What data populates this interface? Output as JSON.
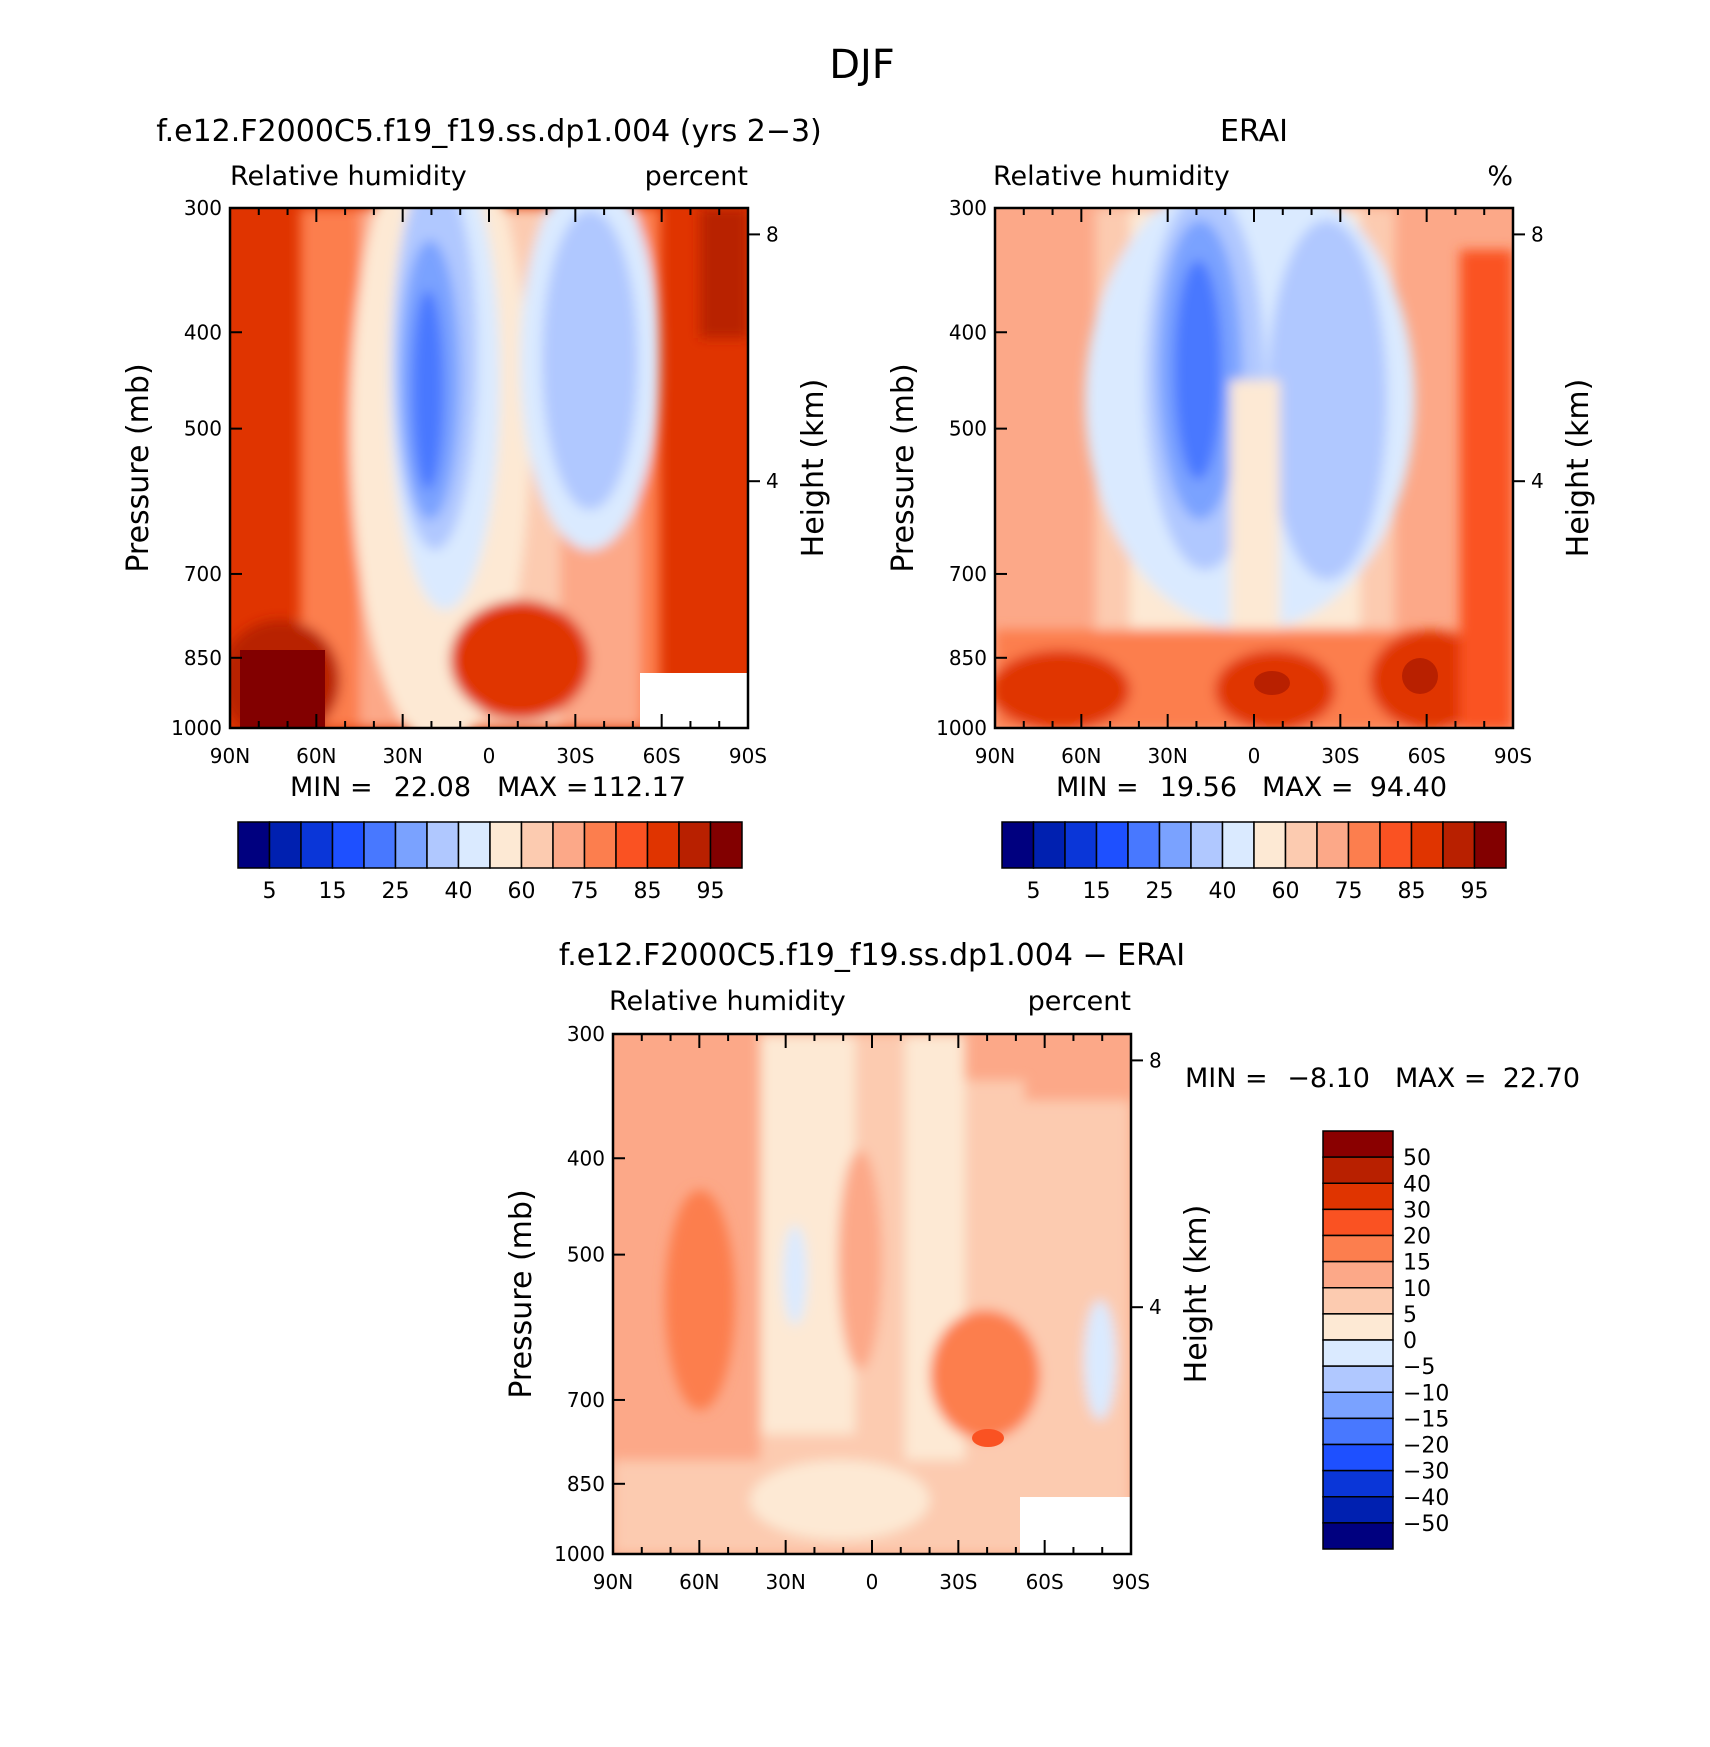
{
  "figure_title": "DJF",
  "colors": {
    "rh_scale": [
      "#00007f",
      "#0020b0",
      "#0a36d8",
      "#1e50ff",
      "#4878ff",
      "#7aa2ff",
      "#b0c8ff",
      "#daeaff",
      "#fde9d4",
      "#fccbb0",
      "#fca888",
      "#fc7e4e",
      "#fa5222",
      "#e03400",
      "#b82000",
      "#820000"
    ],
    "diff_scale": [
      "#8a0000",
      "#b82000",
      "#e03400",
      "#fa5222",
      "#fc7e4e",
      "#fca888",
      "#fccbb0",
      "#fde9d4",
      "#daeaff",
      "#b0c8ff",
      "#7aa2ff",
      "#4878ff",
      "#1e50ff",
      "#0a36d8",
      "#0020b0",
      "#00007f"
    ]
  },
  "chart_data": [
    {
      "type": "heatmap",
      "title": "f.e12.F2000C5.f19_f19.ss.dp1.004 (yrs 2−3)",
      "variable": "Relative humidity",
      "units": "percent",
      "ylabel": "Pressure (mb)",
      "y2label": "Height (km)",
      "x_ticks": [
        "90N",
        "60N",
        "30N",
        "0",
        "30S",
        "60S",
        "90S"
      ],
      "y_ticks": [
        "300",
        "400",
        "500",
        "700",
        "850",
        "1000"
      ],
      "y2_ticks": [
        "8",
        "4"
      ],
      "ylim": [
        1000,
        300
      ],
      "min_label": "MIN =",
      "min_value": "22.08",
      "max_label": "MAX =",
      "max_value": "112.17",
      "colorbar_labels": [
        "5",
        "15",
        "25",
        "40",
        "60",
        "75",
        "85",
        "95"
      ]
    },
    {
      "type": "heatmap",
      "title": "ERAI",
      "variable": "Relative humidity",
      "units": "%",
      "ylabel": "Pressure (mb)",
      "y2label": "Height (km)",
      "x_ticks": [
        "90N",
        "60N",
        "30N",
        "0",
        "30S",
        "60S",
        "90S"
      ],
      "y_ticks": [
        "300",
        "400",
        "500",
        "700",
        "850",
        "1000"
      ],
      "y2_ticks": [
        "8",
        "4"
      ],
      "ylim": [
        1000,
        300
      ],
      "min_label": "MIN =",
      "min_value": "19.56",
      "max_label": "MAX =",
      "max_value": "94.40",
      "colorbar_labels": [
        "5",
        "15",
        "25",
        "40",
        "60",
        "75",
        "85",
        "95"
      ]
    },
    {
      "type": "heatmap",
      "title": "f.e12.F2000C5.f19_f19.ss.dp1.004 − ERAI",
      "variable": "Relative humidity",
      "units": "percent",
      "ylabel": "Pressure (mb)",
      "y2label": "Height (km)",
      "x_ticks": [
        "90N",
        "60N",
        "30N",
        "0",
        "30S",
        "60S",
        "90S"
      ],
      "y_ticks": [
        "300",
        "400",
        "500",
        "700",
        "850",
        "1000"
      ],
      "y2_ticks": [
        "8",
        "4"
      ],
      "ylim": [
        1000,
        300
      ],
      "min_label": "MIN =",
      "min_value": "−8.10",
      "max_label": "MAX =",
      "max_value": "22.70",
      "colorbar_labels": [
        "50",
        "40",
        "30",
        "20",
        "15",
        "10",
        "5",
        "0",
        "−5",
        "−10",
        "−15",
        "−20",
        "−30",
        "−40",
        "−50"
      ]
    }
  ]
}
